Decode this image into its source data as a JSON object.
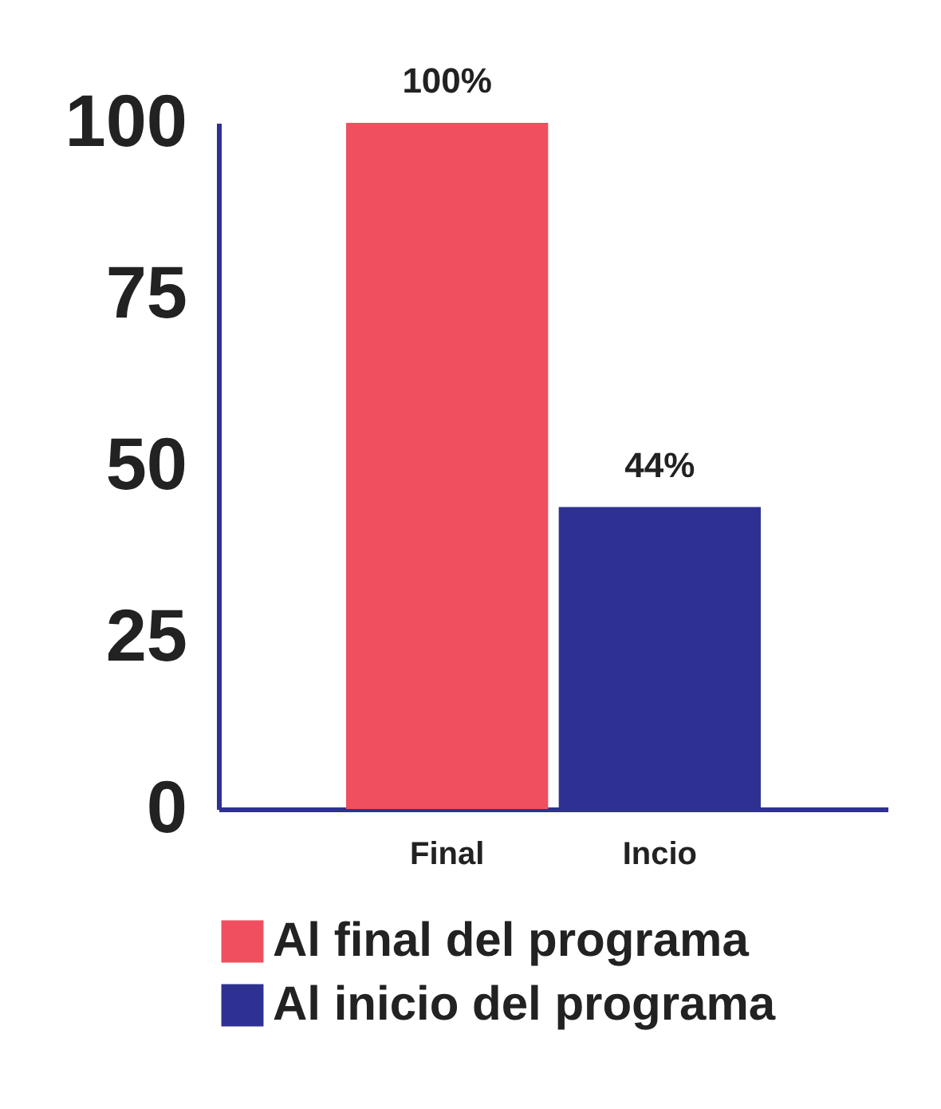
{
  "chart_data": {
    "type": "bar",
    "categories": [
      "Final",
      "Incio"
    ],
    "series": [
      {
        "name": "Al final del programa",
        "color": "#ef4f5e",
        "values": [
          100,
          null
        ],
        "value_labels": [
          "100%",
          null
        ]
      },
      {
        "name": "Al inicio del programa",
        "color": "#2e3192",
        "values": [
          null,
          44
        ],
        "value_labels": [
          null,
          "44%"
        ]
      }
    ],
    "ylim": [
      0,
      100
    ],
    "yticks": [
      0,
      25,
      50,
      75,
      100
    ],
    "grid": false,
    "legend": "bottom"
  }
}
